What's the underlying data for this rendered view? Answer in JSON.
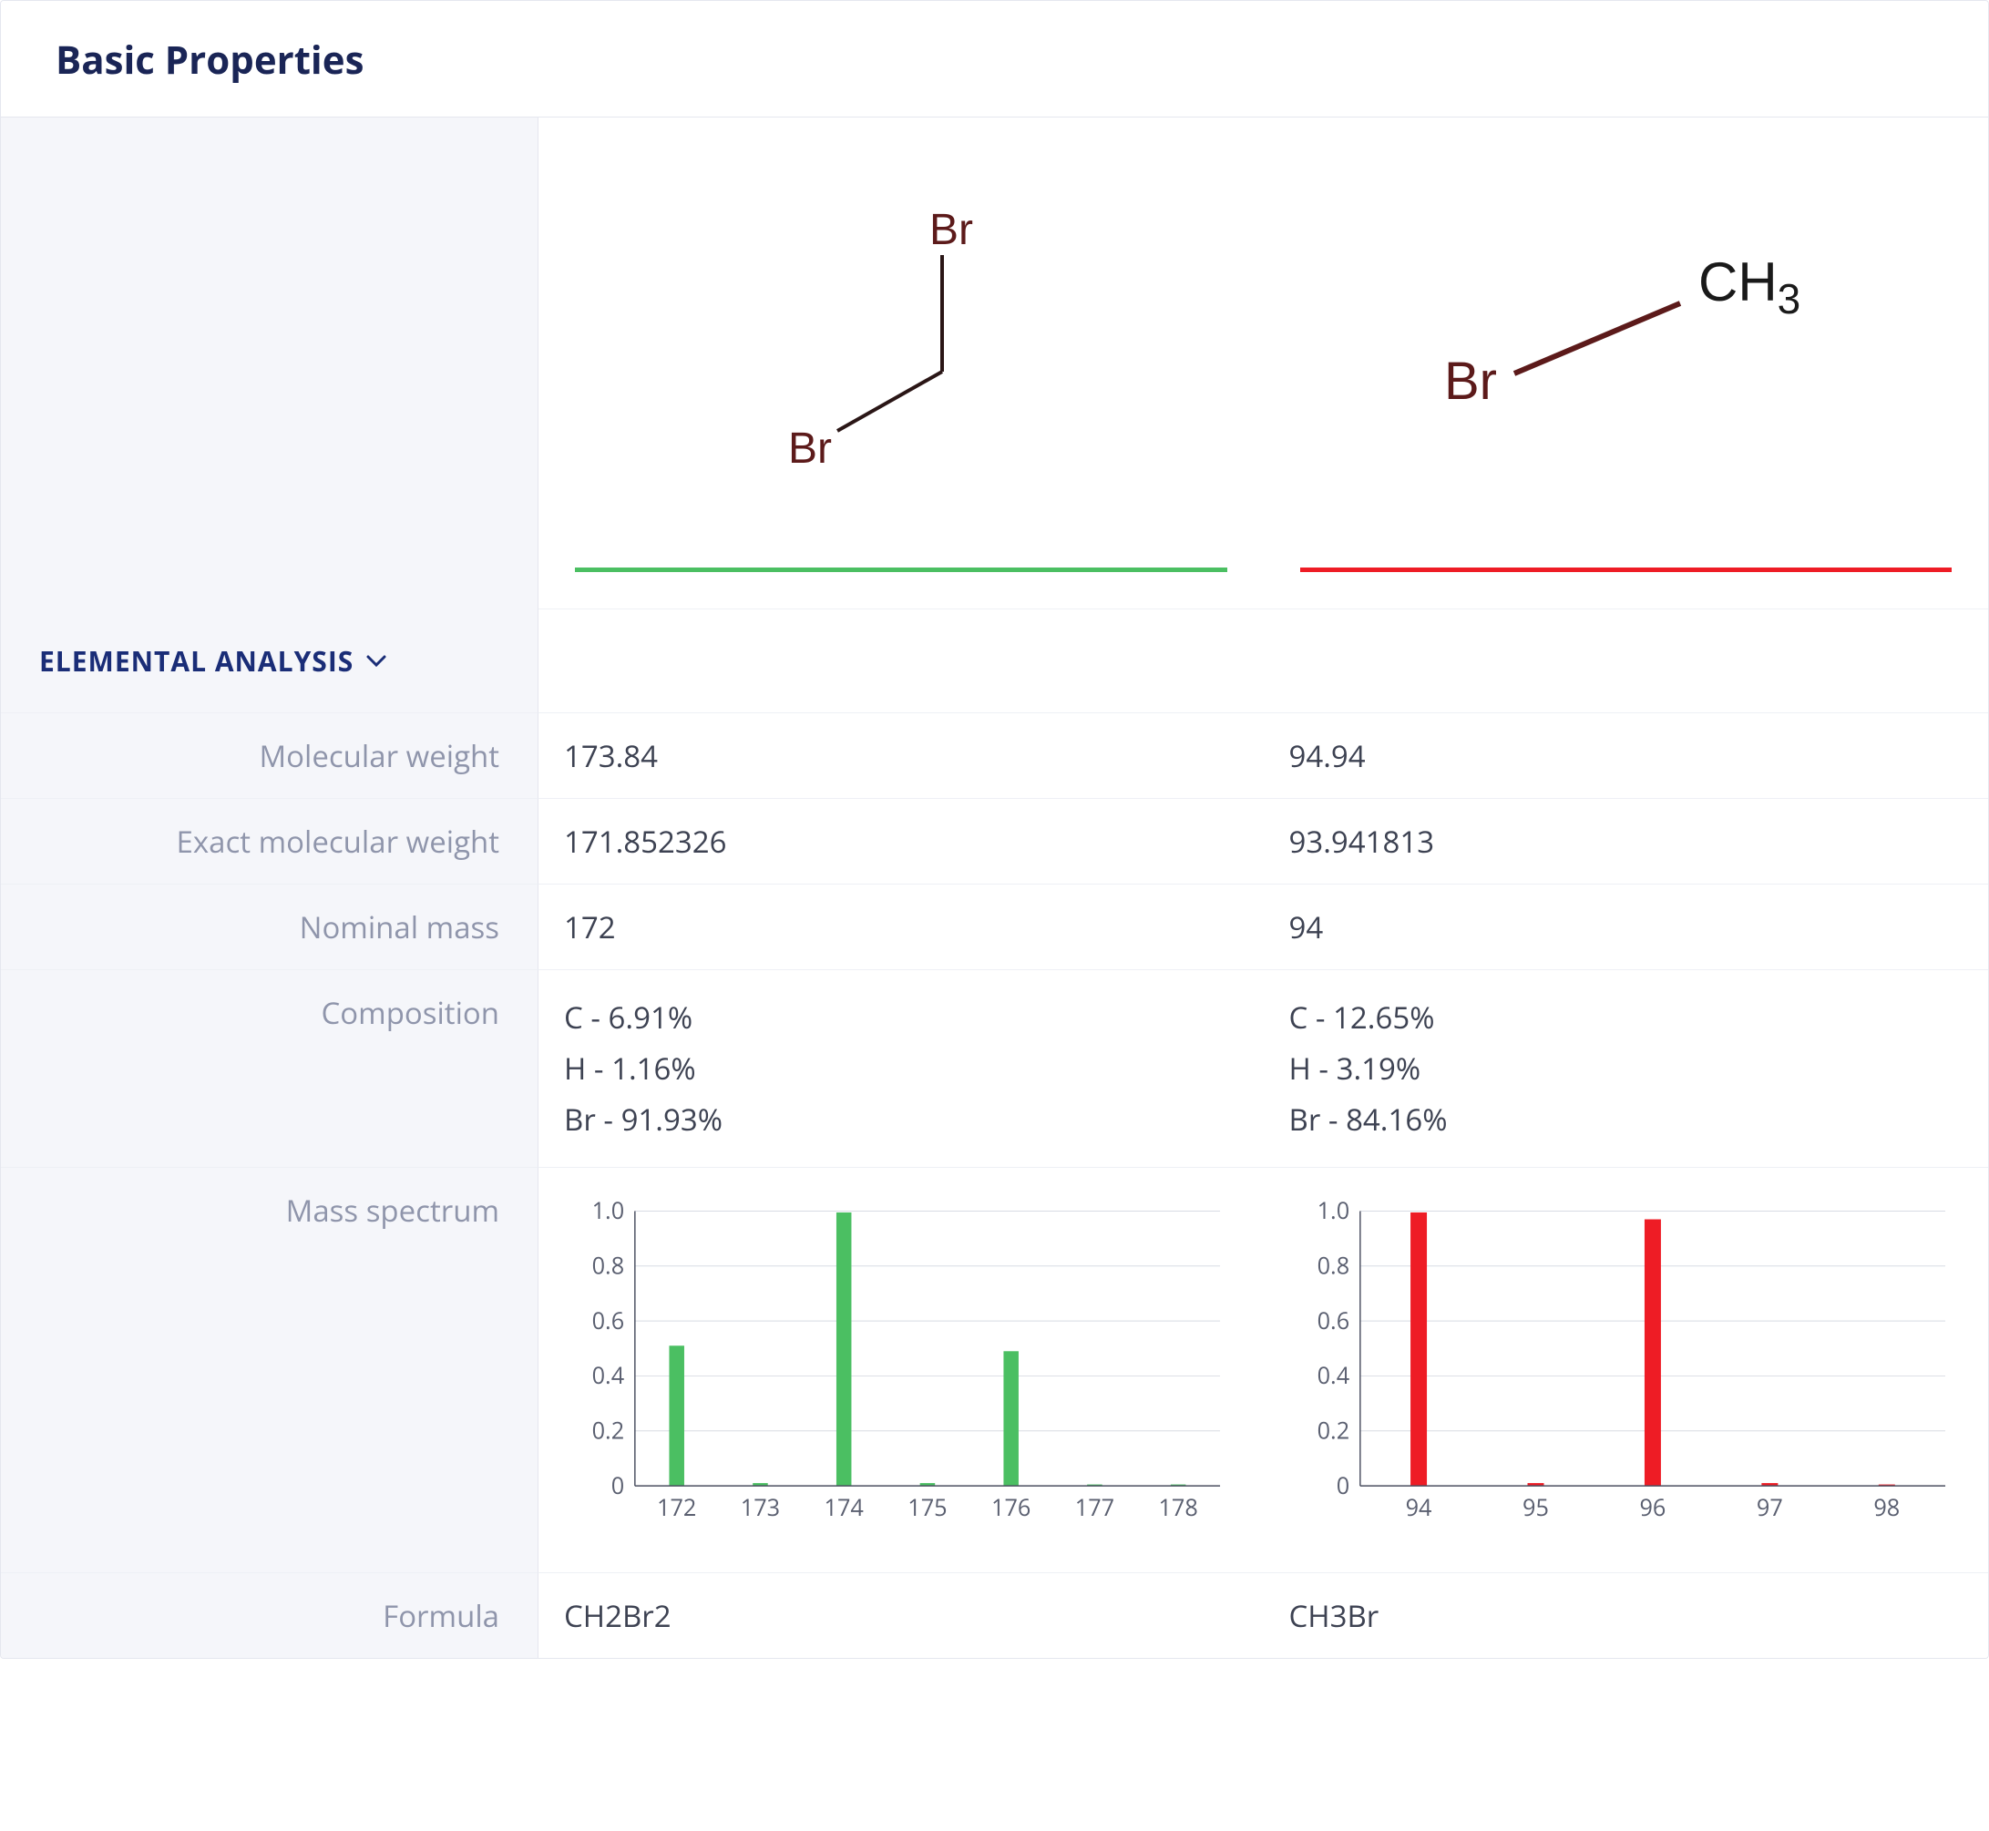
{
  "panel_title": "Basic Properties",
  "section_header": "ELEMENTAL ANALYSIS",
  "underline_colors": [
    "#4bbf62",
    "#ee1c25"
  ],
  "rows": {
    "mw": {
      "label": "Molecular weight",
      "a": "173.84",
      "b": "94.94"
    },
    "emw": {
      "label": "Exact molecular weight",
      "a": "171.852326",
      "b": "93.941813"
    },
    "nm": {
      "label": "Nominal mass",
      "a": "172",
      "b": "94"
    },
    "comp": {
      "label": "Composition",
      "a": [
        "C - 6.91%",
        "H - 1.16%",
        "Br - 91.93%"
      ],
      "b": [
        "C - 12.65%",
        "H - 3.19%",
        "Br - 84.16%"
      ]
    },
    "ms": {
      "label": "Mass spectrum"
    },
    "formula": {
      "label": "Formula",
      "a": "CH2Br2",
      "b": "CH3Br"
    }
  },
  "structures": {
    "a": {
      "atoms": [
        "Br",
        "Br"
      ],
      "atom_color": "#5c1a1a"
    },
    "b": {
      "atoms": [
        "Br",
        "CH3"
      ],
      "atom_color": "#5c1a1a"
    }
  },
  "spectra": {
    "a": {
      "type": "bar",
      "color": "#4bbf62",
      "ylim": [
        0,
        1.0
      ],
      "yticks": [
        0,
        0.2,
        0.4,
        0.6,
        0.8,
        1.0
      ],
      "xticks": [
        172,
        173,
        174,
        175,
        176,
        177,
        178
      ],
      "grid_color": "#d8dbe3",
      "axis_color": "#4a4f60",
      "bars": [
        {
          "x": 172,
          "y": 0.51
        },
        {
          "x": 173,
          "y": 0.01
        },
        {
          "x": 174,
          "y": 0.995
        },
        {
          "x": 175,
          "y": 0.01
        },
        {
          "x": 176,
          "y": 0.49
        },
        {
          "x": 177,
          "y": 0.005
        },
        {
          "x": 178,
          "y": 0.005
        }
      ],
      "bar_width": 0.18,
      "label_fontsize": 26,
      "background_color": "#ffffff"
    },
    "b": {
      "type": "bar",
      "color": "#ee1c25",
      "ylim": [
        0,
        1.0
      ],
      "yticks": [
        0,
        0.2,
        0.4,
        0.6,
        0.8,
        1.0
      ],
      "xticks": [
        94,
        95,
        96,
        97,
        98
      ],
      "grid_color": "#d8dbe3",
      "axis_color": "#4a4f60",
      "bars": [
        {
          "x": 94,
          "y": 0.995
        },
        {
          "x": 95,
          "y": 0.01
        },
        {
          "x": 96,
          "y": 0.97
        },
        {
          "x": 97,
          "y": 0.01
        },
        {
          "x": 98,
          "y": 0.005
        }
      ],
      "bar_width": 0.14,
      "label_fontsize": 26,
      "background_color": "#ffffff"
    }
  }
}
